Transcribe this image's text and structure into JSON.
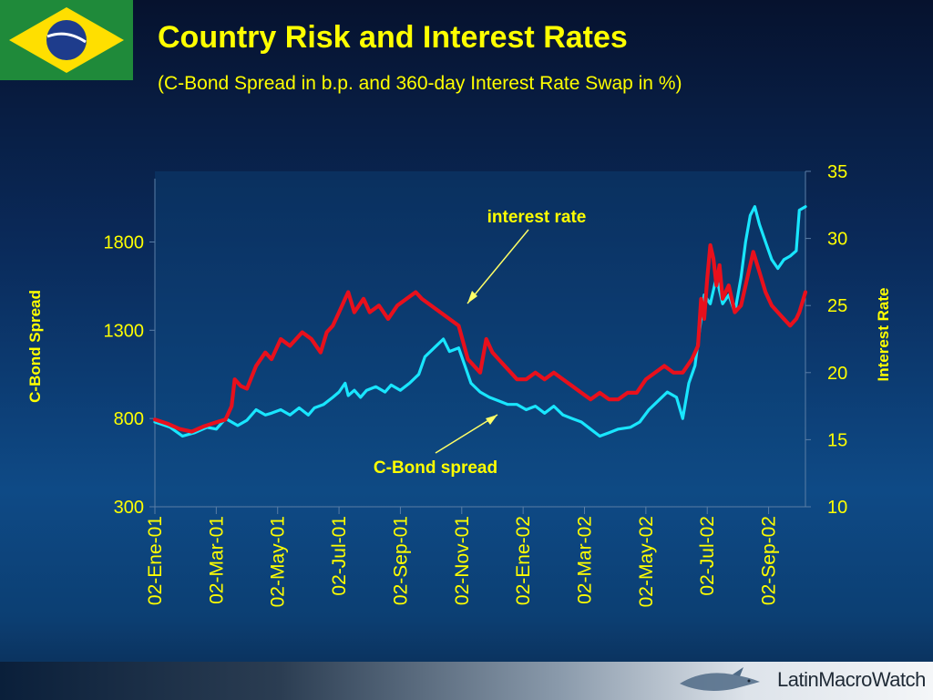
{
  "header": {
    "title": "Country Risk and Interest Rates",
    "subtitle": "(C-Bond Spread in b.p. and 360-day Interest Rate Swap in %)"
  },
  "footer": {
    "brand": "LatinMacroWatch"
  },
  "colors": {
    "title": "#ffff00",
    "cbond": "#19e6ff",
    "interest": "#e8101c",
    "axis_text": "#ffff00",
    "annotation_text": "#ffff00"
  },
  "chart_data": {
    "type": "line",
    "title": "Country Risk and Interest Rates",
    "ylabel": "C-Bond Spread",
    "y2label": "Interest Rate",
    "ylim": [
      300,
      2200
    ],
    "y2lim": [
      10,
      35
    ],
    "y_ticks": [
      "300",
      "800",
      "1300",
      "1800"
    ],
    "y2_ticks": [
      "10",
      "15",
      "20",
      "25",
      "30",
      "35"
    ],
    "x_ticks": [
      "02-Ene-01",
      "02-Mar-01",
      "02-May-01",
      "02-Jul-01",
      "02-Sep-01",
      "02-Nov-01",
      "02-Ene-02",
      "02-Mar-02",
      "02-May-02",
      "02-Jul-02",
      "02-Sep-02"
    ],
    "x_months": [
      0,
      2,
      4,
      6,
      8,
      10,
      12,
      14,
      16,
      18,
      20
    ],
    "annotations": {
      "interest": "interest rate",
      "cbond": "C-Bond spread"
    },
    "series": [
      {
        "name": "C-Bond spread",
        "axis": "left",
        "x": [
          0,
          0.5,
          0.9,
          1.3,
          1.7,
          2.0,
          2.3,
          2.5,
          2.7,
          3.0,
          3.3,
          3.6,
          3.8,
          4.1,
          4.4,
          4.7,
          5.0,
          5.2,
          5.5,
          5.8,
          6.0,
          6.2,
          6.3,
          6.5,
          6.7,
          6.9,
          7.2,
          7.5,
          7.7,
          8.0,
          8.3,
          8.6,
          8.8,
          9.1,
          9.4,
          9.6,
          9.9,
          10.1,
          10.3,
          10.6,
          10.9,
          11.2,
          11.5,
          11.8,
          12.1,
          12.4,
          12.7,
          13.0,
          13.3,
          13.6,
          13.9,
          14.2,
          14.5,
          14.8,
          15.1,
          15.5,
          15.8,
          16.1,
          16.4,
          16.7,
          17.0,
          17.2,
          17.4,
          17.6,
          17.75,
          17.9,
          18.1,
          18.3,
          18.5,
          18.7,
          18.9,
          19.1,
          19.25,
          19.4,
          19.55,
          19.7,
          19.9,
          20.1,
          20.3,
          20.5,
          20.7,
          20.9,
          21.0,
          21.2
        ],
        "y": [
          780,
          750,
          700,
          720,
          750,
          740,
          800,
          780,
          760,
          790,
          850,
          820,
          830,
          850,
          820,
          860,
          820,
          860,
          880,
          920,
          950,
          1000,
          930,
          960,
          920,
          960,
          980,
          950,
          990,
          960,
          1000,
          1050,
          1150,
          1200,
          1250,
          1180,
          1200,
          1100,
          1000,
          950,
          920,
          900,
          880,
          880,
          850,
          870,
          830,
          870,
          820,
          800,
          780,
          740,
          700,
          720,
          740,
          750,
          780,
          850,
          900,
          950,
          920,
          800,
          1000,
          1100,
          1300,
          1500,
          1450,
          1600,
          1450,
          1500,
          1400,
          1600,
          1800,
          1950,
          2000,
          1900,
          1800,
          1700,
          1650,
          1700,
          1720,
          1750,
          1980,
          2000
        ]
      },
      {
        "name": "interest rate",
        "axis": "right",
        "x": [
          0,
          0.4,
          0.8,
          1.2,
          1.6,
          2.0,
          2.3,
          2.5,
          2.6,
          2.8,
          3.0,
          3.3,
          3.6,
          3.8,
          4.1,
          4.4,
          4.8,
          5.1,
          5.4,
          5.6,
          5.8,
          6.0,
          6.2,
          6.3,
          6.5,
          6.8,
          7.0,
          7.3,
          7.6,
          7.9,
          8.2,
          8.5,
          8.7,
          9.0,
          9.3,
          9.6,
          9.9,
          10.2,
          10.4,
          10.6,
          10.8,
          11.0,
          11.2,
          11.4,
          11.6,
          11.8,
          12.1,
          12.4,
          12.7,
          13.0,
          13.3,
          13.6,
          13.9,
          14.2,
          14.5,
          14.8,
          15.1,
          15.4,
          15.7,
          16.0,
          16.3,
          16.6,
          16.9,
          17.2,
          17.5,
          17.7,
          17.8,
          17.9,
          18.0,
          18.1,
          18.2,
          18.3,
          18.4,
          18.5,
          18.7,
          18.9,
          19.1,
          19.3,
          19.5,
          19.7,
          19.9,
          20.1,
          20.3,
          20.5,
          20.7,
          20.9,
          21.0,
          21.2
        ],
        "y": [
          16.5,
          16.2,
          15.8,
          15.6,
          16.0,
          16.3,
          16.5,
          17.5,
          19.5,
          19.0,
          18.8,
          20.5,
          21.5,
          21.0,
          22.5,
          22.0,
          23.0,
          22.5,
          21.5,
          23.0,
          23.5,
          24.5,
          25.5,
          26.0,
          24.5,
          25.5,
          24.5,
          25.0,
          24.0,
          25.0,
          25.5,
          26.0,
          25.5,
          25.0,
          24.5,
          24.0,
          23.5,
          21.0,
          20.5,
          20.0,
          22.5,
          21.5,
          21.0,
          20.5,
          20.0,
          19.5,
          19.5,
          20.0,
          19.5,
          20.0,
          19.5,
          19.0,
          18.5,
          18.0,
          18.5,
          18.0,
          18.0,
          18.5,
          18.5,
          19.5,
          20.0,
          20.5,
          20.0,
          20.0,
          21.0,
          22.0,
          25.5,
          24.0,
          27.0,
          29.5,
          28.5,
          26.5,
          28.0,
          25.5,
          26.5,
          24.5,
          25.0,
          27.0,
          29.0,
          27.5,
          26.0,
          25.0,
          24.5,
          24.0,
          23.5,
          24.0,
          24.5,
          26.0
        ]
      }
    ]
  }
}
